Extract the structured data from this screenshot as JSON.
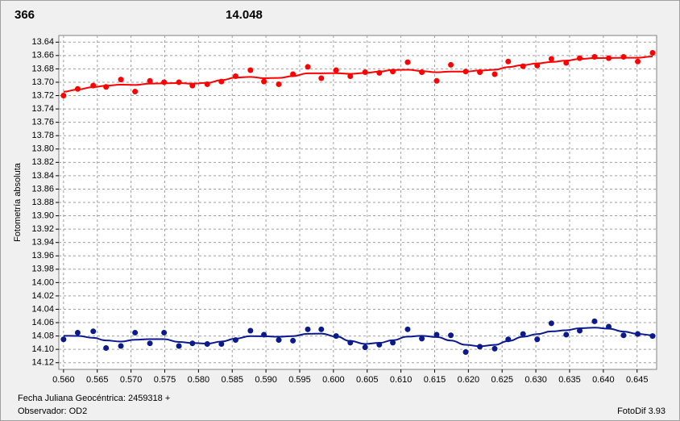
{
  "chart_data": {
    "type": "scatter",
    "title": "366",
    "title_color": "#ff0000",
    "subtitle": "14.048",
    "subtitle_color": "#0a1a8c",
    "ylabel": "Fotometría absoluta",
    "xlabel": "Fecha Juliana Geocéntrica: 2459318 +",
    "footer_left": "Observador: OD2",
    "footer_right": "FotoDif 3.93",
    "grid": true,
    "y_inverted": true,
    "smooth_line": true,
    "xlim": [
      0.5593,
      0.6479
    ],
    "ylim": [
      13.63,
      14.13
    ],
    "xticks": [
      {
        "value": 0.56,
        "label": "0.560"
      },
      {
        "value": 0.565,
        "label": "0.565"
      },
      {
        "value": 0.57,
        "label": "0.570"
      },
      {
        "value": 0.575,
        "label": "0.575"
      },
      {
        "value": 0.58,
        "label": "0.580"
      },
      {
        "value": 0.585,
        "label": "0.585"
      },
      {
        "value": 0.59,
        "label": "0.590"
      },
      {
        "value": 0.595,
        "label": "0.595"
      },
      {
        "value": 0.6,
        "label": "0.600"
      },
      {
        "value": 0.605,
        "label": "0.605"
      },
      {
        "value": 0.61,
        "label": "0.610"
      },
      {
        "value": 0.615,
        "label": "0.615"
      },
      {
        "value": 0.62,
        "label": "0.620"
      },
      {
        "value": 0.625,
        "label": "0.625"
      },
      {
        "value": 0.63,
        "label": "0.630"
      },
      {
        "value": 0.635,
        "label": "0.635"
      },
      {
        "value": 0.64,
        "label": "0.640"
      },
      {
        "value": 0.645,
        "label": "0.645"
      }
    ],
    "yticks": [
      {
        "value": 13.64,
        "label": "13.64"
      },
      {
        "value": 13.66,
        "label": "13.66"
      },
      {
        "value": 13.68,
        "label": "13.68"
      },
      {
        "value": 13.7,
        "label": "13.70"
      },
      {
        "value": 13.72,
        "label": "13.72"
      },
      {
        "value": 13.74,
        "label": "13.74"
      },
      {
        "value": 13.76,
        "label": "13.76"
      },
      {
        "value": 13.78,
        "label": "13.78"
      },
      {
        "value": 13.8,
        "label": "13.80"
      },
      {
        "value": 13.82,
        "label": "13.82"
      },
      {
        "value": 13.84,
        "label": "13.84"
      },
      {
        "value": 13.86,
        "label": "13.86"
      },
      {
        "value": 13.88,
        "label": "13.88"
      },
      {
        "value": 13.9,
        "label": "13.90"
      },
      {
        "value": 13.92,
        "label": "13.92"
      },
      {
        "value": 13.94,
        "label": "13.94"
      },
      {
        "value": 13.96,
        "label": "13.96"
      },
      {
        "value": 13.98,
        "label": "13.98"
      },
      {
        "value": 14.0,
        "label": "14.00"
      },
      {
        "value": 14.02,
        "label": "14.02"
      },
      {
        "value": 14.04,
        "label": "14.04"
      },
      {
        "value": 14.06,
        "label": "14.06"
      },
      {
        "value": 14.08,
        "label": "14.08"
      },
      {
        "value": 14.1,
        "label": "14.10"
      },
      {
        "value": 14.12,
        "label": "14.12"
      }
    ],
    "x": [
      0.56,
      0.5621,
      0.5644,
      0.5663,
      0.5685,
      0.5706,
      0.5728,
      0.5749,
      0.5771,
      0.5791,
      0.5813,
      0.5834,
      0.5855,
      0.5877,
      0.5897,
      0.5919,
      0.594,
      0.5962,
      0.5982,
      0.6004,
      0.6025,
      0.6047,
      0.6068,
      0.6088,
      0.611,
      0.6131,
      0.6153,
      0.6174,
      0.6196,
      0.6217,
      0.6239,
      0.6259,
      0.6281,
      0.6302,
      0.6323,
      0.6345,
      0.6365,
      0.6387,
      0.6408,
      0.643,
      0.6451,
      0.6473
    ],
    "series": [
      {
        "color": "#ff0000",
        "values": [
          13.72,
          13.71,
          13.705,
          13.707,
          13.696,
          13.714,
          13.698,
          13.7,
          13.7,
          13.705,
          13.703,
          13.699,
          13.691,
          13.682,
          13.699,
          13.703,
          13.688,
          13.677,
          13.694,
          13.682,
          13.691,
          13.685,
          13.686,
          13.684,
          13.67,
          13.685,
          13.698,
          13.674,
          13.684,
          13.685,
          13.688,
          13.669,
          13.676,
          13.675,
          13.665,
          13.671,
          13.664,
          13.662,
          13.664,
          13.662,
          13.669,
          13.656
        ]
      },
      {
        "color": "#0a1a8c",
        "values": [
          14.085,
          14.075,
          14.073,
          14.098,
          14.095,
          14.075,
          14.091,
          14.075,
          14.095,
          14.091,
          14.092,
          14.092,
          14.086,
          14.072,
          14.078,
          14.086,
          14.087,
          14.07,
          14.07,
          14.08,
          14.09,
          14.097,
          14.093,
          14.09,
          14.07,
          14.084,
          14.078,
          14.079,
          14.104,
          14.096,
          14.099,
          14.085,
          14.077,
          14.085,
          14.061,
          14.078,
          14.072,
          14.058,
          14.066,
          14.079,
          14.077,
          14.08
        ]
      }
    ]
  }
}
